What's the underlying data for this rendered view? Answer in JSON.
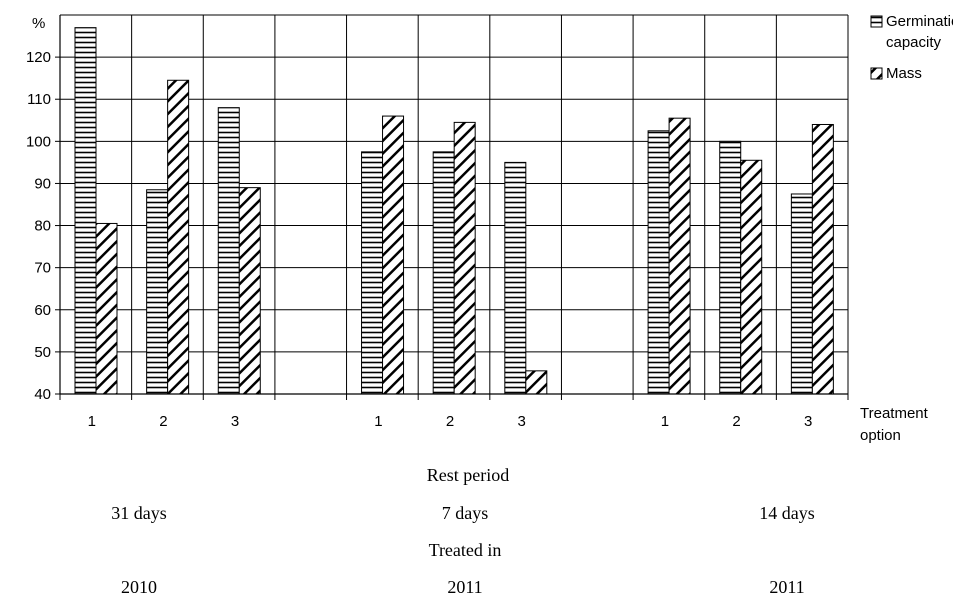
{
  "chart_data": {
    "type": "bar",
    "ylabel": "%",
    "xlabel": "Treatment\noption",
    "ylim": [
      40,
      130
    ],
    "yticks": [
      40,
      50,
      60,
      70,
      80,
      90,
      100,
      110,
      120
    ],
    "grid": true,
    "legend_position": "top-right",
    "categories": [
      "1",
      "2",
      "3",
      "",
      "1",
      "2",
      "3",
      "",
      "1",
      "2",
      "3"
    ],
    "series": [
      {
        "name": "Germination capacity",
        "pattern": "horizontal-lines",
        "values": [
          127,
          88.5,
          108,
          null,
          97.5,
          97.5,
          95,
          null,
          102.5,
          100,
          87.5
        ]
      },
      {
        "name": "Mass",
        "pattern": "diagonal-hatch",
        "values": [
          80.5,
          114.5,
          89,
          null,
          106,
          104.5,
          45.5,
          null,
          105.5,
          95.5,
          104
        ]
      }
    ],
    "annotations": {
      "rest_period_title": "Rest period",
      "rest_periods": [
        "31 days",
        "7  days",
        "14 days"
      ],
      "treated_in_title": "Treated in",
      "treated_years": [
        "2010",
        "2011",
        "2011"
      ]
    }
  }
}
